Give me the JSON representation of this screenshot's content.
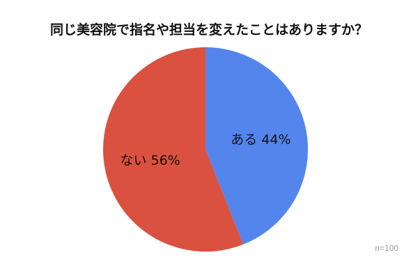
{
  "chart_data": {
    "type": "pie",
    "title": "同じ美容院で指名や担当を変えたことはありますか？",
    "slices": [
      {
        "label": "ある",
        "value": 44,
        "display": "ある 44%",
        "color": "#5485ED"
      },
      {
        "label": "ない",
        "value": 56,
        "display": "ない 56%",
        "color": "#DB5140"
      }
    ],
    "start": "top",
    "direction": "clockwise",
    "note": "n=100"
  }
}
